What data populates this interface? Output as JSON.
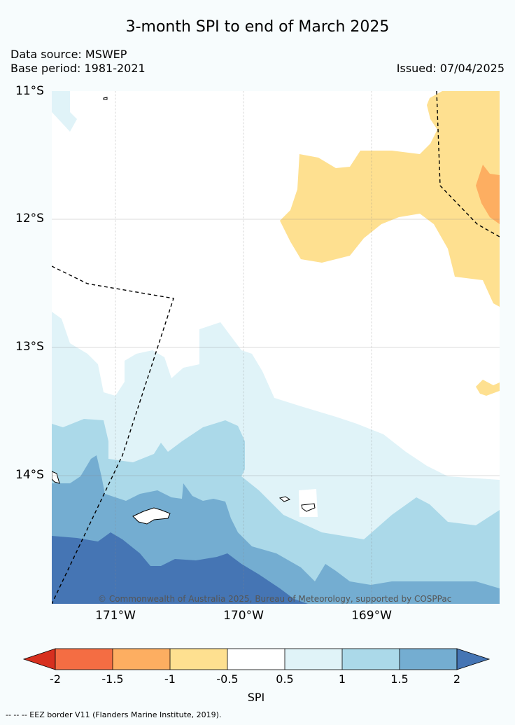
{
  "title": "3-month SPI to end of March 2025",
  "data_source": "Data source: MSWEP",
  "base_period": "Base period: 1981-2021",
  "issued": "Issued: 07/04/2025",
  "lat_labels": [
    "11°S",
    "12°S",
    "13°S",
    "14°S"
  ],
  "lon_labels": [
    "171°W",
    "170°W",
    "169°W"
  ],
  "copyright": "© Commonwealth of Australia 2025, Bureau of Meteorology, supported by COSPPac",
  "colorbar": {
    "title": "SPI",
    "ticks": [
      "-2",
      "-1.5",
      "-1",
      "-0.5",
      "0.5",
      "1",
      "1.5",
      "2"
    ],
    "colors": [
      "#d7301f",
      "#f46d43",
      "#fdae61",
      "#fee090",
      "#ffffff",
      "#e0f3f8",
      "#abd9e9",
      "#74add1",
      "#4575b4"
    ]
  },
  "footer": "-- -- -- EEZ border V11 (Flanders Marine Institute, 2019)."
}
